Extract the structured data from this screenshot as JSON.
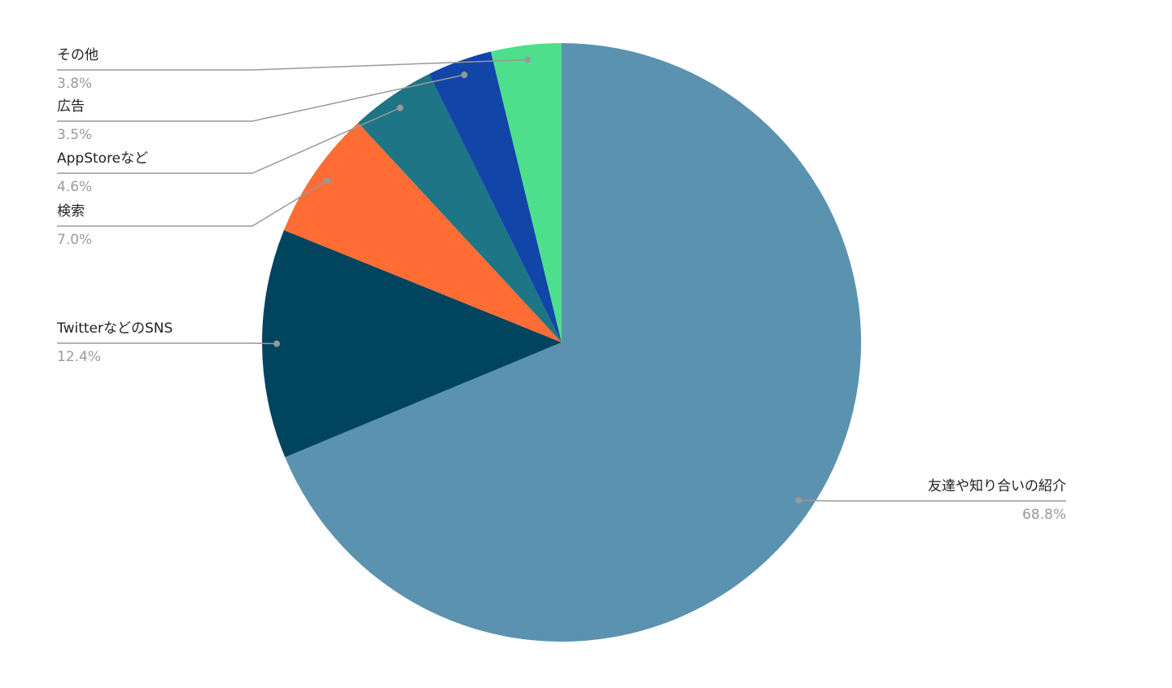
{
  "chart_data": {
    "type": "pie",
    "categories": [
      "友達や知り合いの紹介",
      "TwitterなどのSNS",
      "検索",
      "AppStoreなど",
      "広告",
      "その他"
    ],
    "values": [
      68.8,
      12.4,
      7.0,
      4.6,
      3.5,
      3.8
    ],
    "value_labels": [
      "68.8%",
      "12.4%",
      "7.0%",
      "4.6%",
      "3.5%",
      "3.8%"
    ],
    "colors": [
      "#5b92b0",
      "#01445e",
      "#ff6d34",
      "#1e7585",
      "#1245a8",
      "#4ddf8b"
    ]
  }
}
